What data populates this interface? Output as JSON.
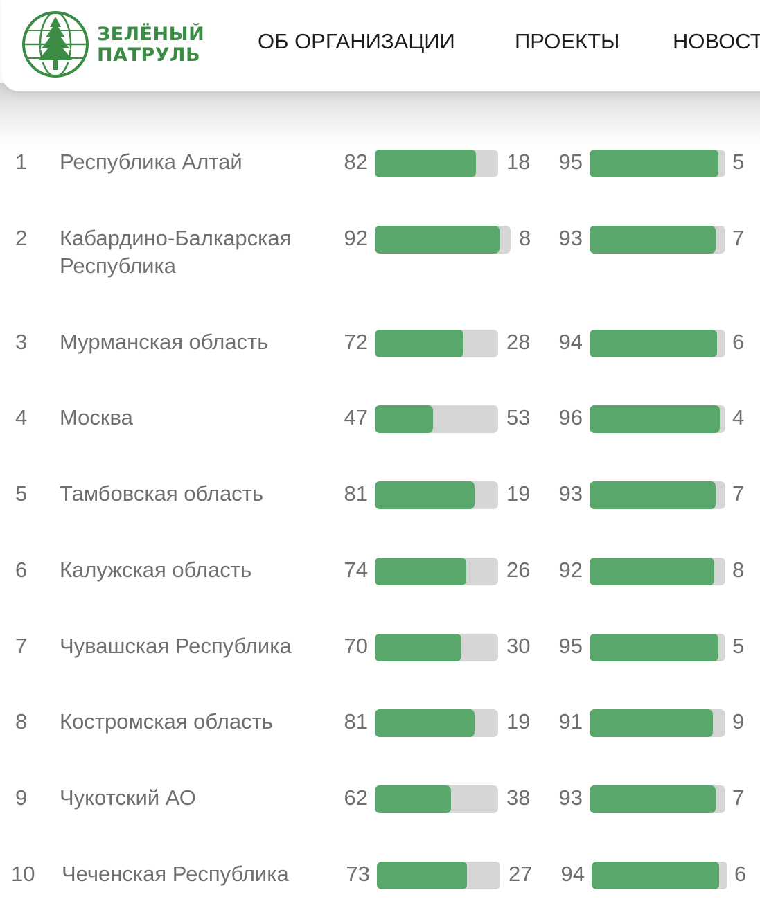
{
  "header": {
    "logo": {
      "line1": "ЗЕЛЁНЫЙ",
      "line2": "ПАТРУЛЬ",
      "icon": "tree-globe-icon",
      "color": "#3c8c46"
    },
    "nav": [
      "ОБ ОРГАНИЗАЦИИ",
      "ПРОЕКТЫ",
      "НОВОСТ"
    ]
  },
  "colors": {
    "bar_fill": "#5aa76b",
    "bar_track": "#d6d6d6",
    "text": "#6f6f6f"
  },
  "rows": [
    {
      "rank": "1",
      "name": "Республика Алтай",
      "a_left": "82",
      "a_right": "18",
      "a_value": 82,
      "b_left": "95",
      "b_right": "5",
      "b_value": 95
    },
    {
      "rank": "2",
      "name": "Кабардино-Балкарская Республика",
      "a_left": "92",
      "a_right": "8",
      "a_value": 92,
      "b_left": "93",
      "b_right": "7",
      "b_value": 93
    },
    {
      "rank": "3",
      "name": "Мурманская область",
      "a_left": "72",
      "a_right": "28",
      "a_value": 72,
      "b_left": "94",
      "b_right": "6",
      "b_value": 94
    },
    {
      "rank": "4",
      "name": "Москва",
      "a_left": "47",
      "a_right": "53",
      "a_value": 47,
      "b_left": "96",
      "b_right": "4",
      "b_value": 96
    },
    {
      "rank": "5",
      "name": "Тамбовская область",
      "a_left": "81",
      "a_right": "19",
      "a_value": 81,
      "b_left": "93",
      "b_right": "7",
      "b_value": 93
    },
    {
      "rank": "6",
      "name": "Калужская область",
      "a_left": "74",
      "a_right": "26",
      "a_value": 74,
      "b_left": "92",
      "b_right": "8",
      "b_value": 92
    },
    {
      "rank": "7",
      "name": "Чувашская Республика",
      "a_left": "70",
      "a_right": "30",
      "a_value": 70,
      "b_left": "95",
      "b_right": "5",
      "b_value": 95
    },
    {
      "rank": "8",
      "name": "Костромская область",
      "a_left": "81",
      "a_right": "19",
      "a_value": 81,
      "b_left": "91",
      "b_right": "9",
      "b_value": 91
    },
    {
      "rank": "9",
      "name": "Чукотский АО",
      "a_left": "62",
      "a_right": "38",
      "a_value": 62,
      "b_left": "93",
      "b_right": "7",
      "b_value": 93
    },
    {
      "rank": "10",
      "name": "Чеченская Республика",
      "a_left": "73",
      "a_right": "27",
      "a_value": 73,
      "b_left": "94",
      "b_right": "6",
      "b_value": 94
    }
  ]
}
